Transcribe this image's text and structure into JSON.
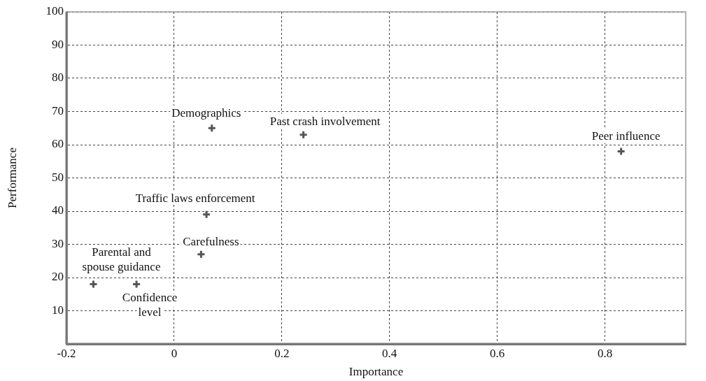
{
  "chart_data": {
    "type": "scatter",
    "xlabel": "Importance",
    "ylabel": "Performance",
    "x": [
      0.07,
      0.24,
      0.83,
      0.06,
      0.05,
      -0.15,
      -0.07
    ],
    "values": [
      65,
      63,
      58,
      39,
      27,
      18,
      18
    ],
    "color": "#555555",
    "marker": "cross",
    "grid": true,
    "xlim": [
      -0.2,
      0.95
    ],
    "xticks": [
      -0.2,
      0,
      0.2,
      0.4,
      0.6,
      0.8
    ],
    "ylim": [
      0,
      100
    ],
    "yticks": [
      10,
      20,
      30,
      40,
      50,
      60,
      70,
      80,
      90,
      100
    ],
    "annotations": [
      {
        "text": "Demographics",
        "x": 0.07,
        "y": 65
      },
      {
        "text": "Past crash involvement",
        "x": 0.24,
        "y": 63
      },
      {
        "text": "Peer influence",
        "x": 0.83,
        "y": 58
      },
      {
        "text": "Traffic laws enforcement",
        "x": 0.06,
        "y": 39
      },
      {
        "text": "Carefulness",
        "x": 0.05,
        "y": 27
      },
      {
        "text": "Parental and\nspouse guidance",
        "x": -0.15,
        "y": 18
      },
      {
        "text": "Confidence\nlevel",
        "x": -0.07,
        "y": 18
      }
    ]
  }
}
